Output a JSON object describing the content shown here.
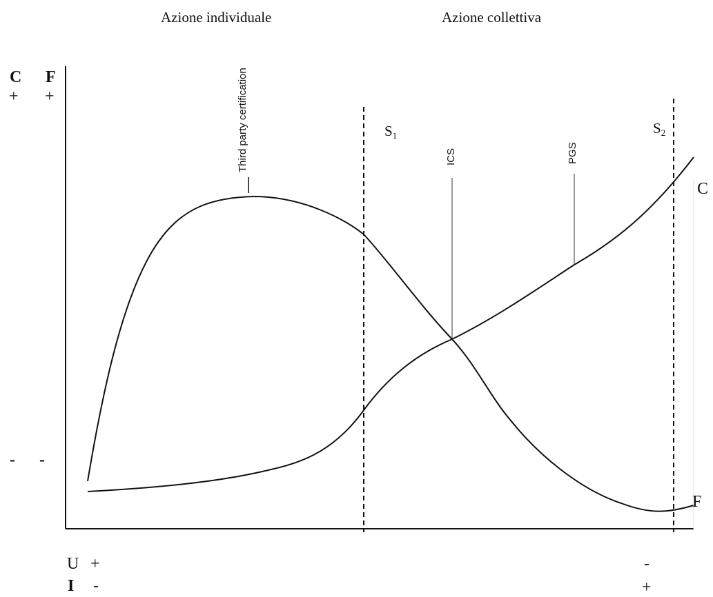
{
  "header": {
    "left": "Azione individuale",
    "right": "Azione collettiva"
  },
  "y_axis": {
    "c_letter": "C",
    "f_letter": "F",
    "c_top": "+",
    "f_top": "+",
    "c_bottom": "-",
    "f_bottom": "-"
  },
  "x_axis": {
    "u_letter": "U",
    "i_letter": "I",
    "u_left": "+",
    "i_left": "-",
    "u_right": "-",
    "i_right": "+"
  },
  "thresholds": {
    "s1_base": "S",
    "s1_sub": "1",
    "s2_base": "S",
    "s2_sub": "2"
  },
  "methods": {
    "third_party": "Third party certification",
    "ics": "ICS",
    "pgs": "PGS"
  },
  "curves": {
    "c_name": "C",
    "f_name": "F"
  }
}
